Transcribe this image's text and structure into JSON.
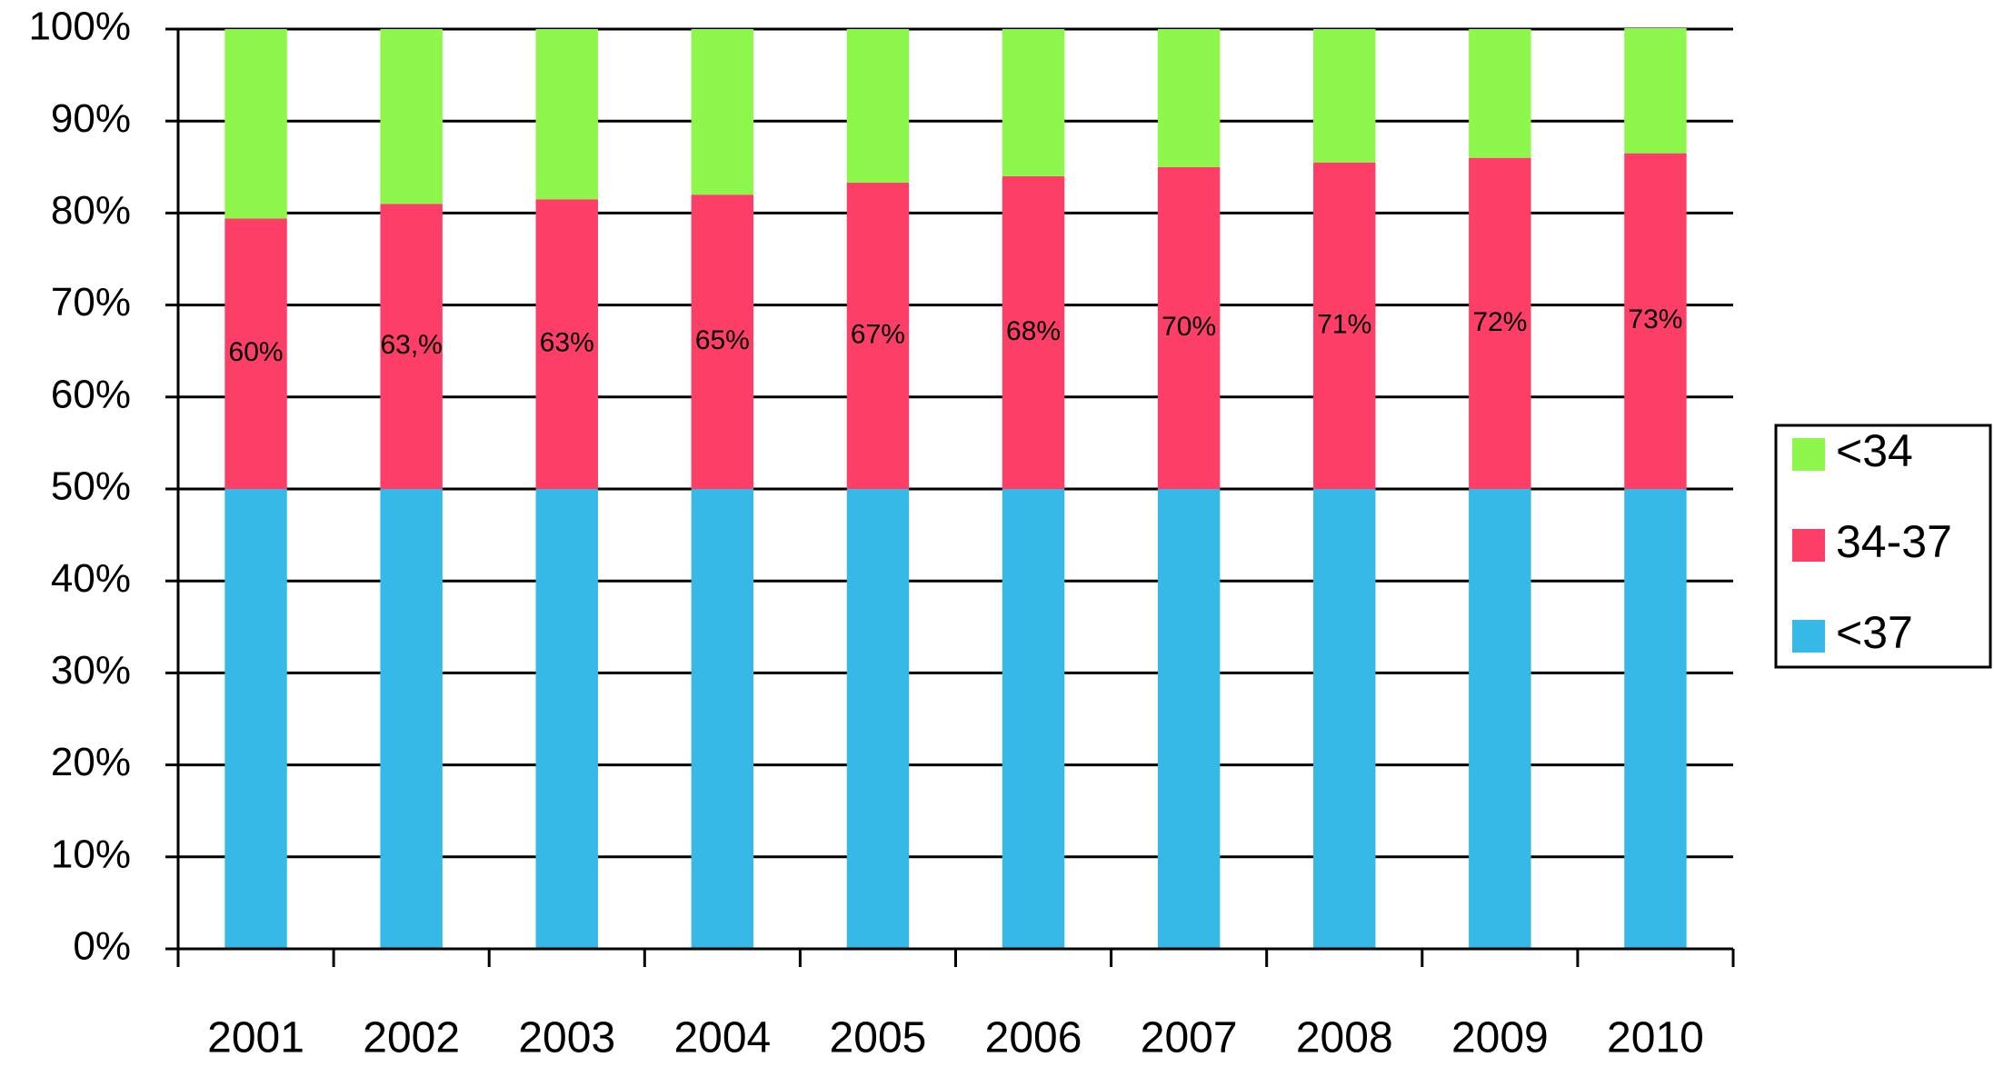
{
  "chart_data": {
    "type": "stacked_bar",
    "categories": [
      "2001",
      "2002",
      "2003",
      "2004",
      "2005",
      "2006",
      "2007",
      "2008",
      "2009",
      "2010"
    ],
    "series": [
      {
        "name": "<37",
        "color": "#36b9e6",
        "values": [
          50,
          50,
          50,
          50,
          50,
          50,
          50,
          50,
          50,
          50
        ]
      },
      {
        "name": "34-37",
        "color": "#fd3f67",
        "values": [
          29.4,
          31,
          31.5,
          32,
          33.3,
          34,
          35,
          35.5,
          36,
          36.5
        ]
      },
      {
        "name": "<34",
        "color": "#8ef74b",
        "values": [
          20.6,
          19,
          18.5,
          18,
          16.7,
          16,
          15,
          14.5,
          14,
          13.6
        ]
      }
    ],
    "annotations": [
      "60%",
      "63,%",
      "63%",
      "65%",
      "67%",
      "68%",
      "70%",
      "71%",
      "72%",
      "73%"
    ],
    "ylim": [
      0,
      100
    ],
    "yticks": [
      {
        "value": 0,
        "label": "0%"
      },
      {
        "value": 10,
        "label": "10%"
      },
      {
        "value": 20,
        "label": "20%"
      },
      {
        "value": 30,
        "label": "30%"
      },
      {
        "value": 40,
        "label": "40%"
      },
      {
        "value": 50,
        "label": "50%"
      },
      {
        "value": 60,
        "label": "60%"
      },
      {
        "value": 70,
        "label": "70%"
      },
      {
        "value": 80,
        "label": "80%"
      },
      {
        "value": 90,
        "label": "90%"
      },
      {
        "value": 100,
        "label": "100%"
      }
    ],
    "grid": true,
    "legend": "right"
  }
}
